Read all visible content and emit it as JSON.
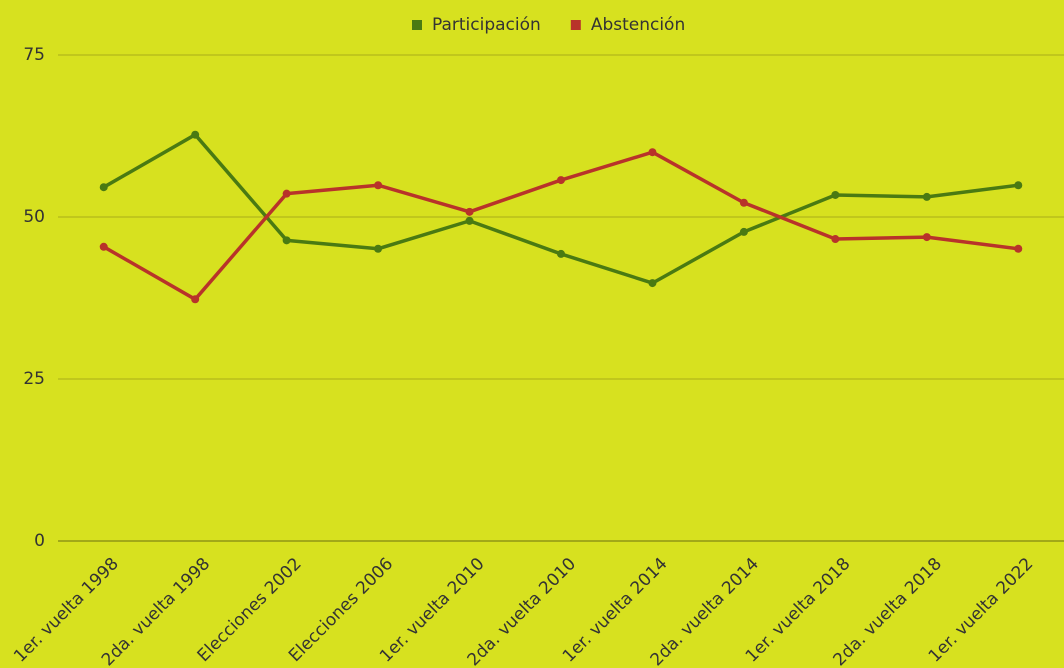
{
  "chart_data": {
    "type": "line",
    "categories": [
      "1er. vuelta 1998",
      "2da. vuelta 1998",
      "Elecciones 2002",
      "Elecciones 2006",
      "1er. vuelta 2010",
      "2da. vuelta 2010",
      "1er. vuelta 2014",
      "2da. vuelta 2014",
      "1er. vuelta 2018",
      "2da. vuelta 2018",
      "1er. vuelta 2022"
    ],
    "series": [
      {
        "name": "Participación",
        "color": "#4a7a12",
        "values": [
          54.6,
          62.7,
          46.4,
          45.1,
          49.4,
          44.3,
          39.8,
          47.7,
          53.4,
          53.1,
          54.9
        ]
      },
      {
        "name": "Abstención",
        "color": "#b8332a",
        "values": [
          45.4,
          37.3,
          53.6,
          54.9,
          50.8,
          55.7,
          60.0,
          52.2,
          46.6,
          46.9,
          45.1
        ]
      }
    ],
    "ylim": [
      0,
      75
    ],
    "yticks": [
      0,
      25,
      50,
      75
    ],
    "grid": true,
    "legend": "top"
  }
}
